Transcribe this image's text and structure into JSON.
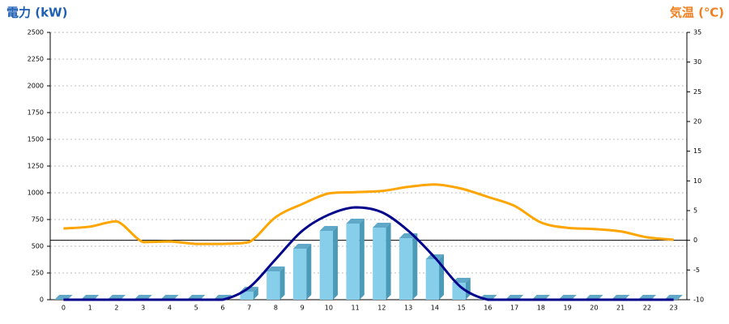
{
  "chart_data": {
    "type": "bar-line",
    "y_title": "電力 (kW)",
    "y2_title": "気温 (℃)",
    "categories": [
      "0",
      "1",
      "2",
      "3",
      "4",
      "5",
      "6",
      "7",
      "8",
      "9",
      "10",
      "11",
      "12",
      "13",
      "14",
      "15",
      "16",
      "17",
      "18",
      "19",
      "20",
      "21",
      "22",
      "23"
    ],
    "ylim": [
      0,
      2500
    ],
    "yticks": [
      0,
      250,
      500,
      750,
      1000,
      1250,
      1500,
      1750,
      2000,
      2250,
      2500
    ],
    "y2lim": [
      -10,
      35
    ],
    "y2ticks": [
      -10,
      -5,
      0,
      5,
      10,
      15,
      20,
      25,
      30,
      35
    ],
    "grid": true,
    "zero_line_y2": 0,
    "series": [
      {
        "type": "bar",
        "color": "#87ceeb",
        "values": [
          0,
          0,
          0,
          0,
          0,
          0,
          0,
          75,
          265,
          477,
          644,
          712,
          674,
          576,
          379,
          159,
          0,
          0,
          0,
          0,
          0,
          0,
          0,
          0
        ]
      },
      {
        "type": "line",
        "color": "#00008b",
        "values": [
          0,
          0,
          0,
          0,
          0,
          0,
          0,
          114,
          379,
          644,
          795,
          864,
          818,
          644,
          394,
          114,
          0,
          0,
          0,
          0,
          0,
          0,
          0,
          0
        ]
      },
      {
        "type": "line",
        "color": "#ffa500",
        "axis": "y2",
        "values": [
          2.0,
          2.3,
          3.2,
          -0.3,
          -0.2,
          -0.6,
          -0.6,
          -0.3,
          3.9,
          6.1,
          7.9,
          8.1,
          8.3,
          9.0,
          9.4,
          8.7,
          7.3,
          5.8,
          3.0,
          2.1,
          1.9,
          1.5,
          0.5,
          0.1
        ]
      }
    ]
  }
}
